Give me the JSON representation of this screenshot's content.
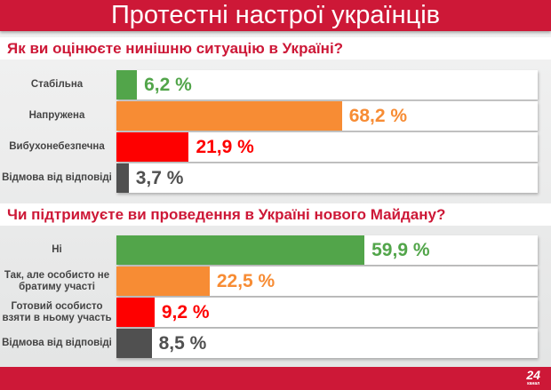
{
  "title": "Протестні настрої українців",
  "logo": {
    "number": "24",
    "sub": "канал"
  },
  "colors": {
    "green": "#52a54a",
    "orange": "#f78c34",
    "red": "#fe0000",
    "gray": "#505050"
  },
  "chart_data": [
    {
      "type": "bar",
      "title": "Як ви оцінюєте нинішню ситуацію в Україні?",
      "categories": [
        "Стабільна",
        "Напружена",
        "Вибухонебезпечна",
        "Відмова від відповіді"
      ],
      "values": [
        6.2,
        68.2,
        21.9,
        3.7
      ],
      "labels": [
        "6,2 %",
        "68,2 %",
        "21,9 %",
        "3,7 %"
      ],
      "bar_colors": [
        "green",
        "orange",
        "red",
        "gray"
      ],
      "xlim": [
        0,
        100
      ]
    },
    {
      "type": "bar",
      "title": "Чи підтримуєте ви проведення в Україні нового Майдану?",
      "categories": [
        "Ні",
        "Так, але особисто не братиму участі",
        "Готовий особисто взяти в ньому участь",
        "Відмова від відповіді"
      ],
      "values": [
        59.9,
        22.5,
        9.2,
        8.5
      ],
      "labels": [
        "59,9 %",
        "22,5 %",
        "9,2 %",
        "8,5 %"
      ],
      "bar_colors": [
        "green",
        "orange",
        "red",
        "gray"
      ],
      "xlim": [
        0,
        100
      ]
    }
  ]
}
